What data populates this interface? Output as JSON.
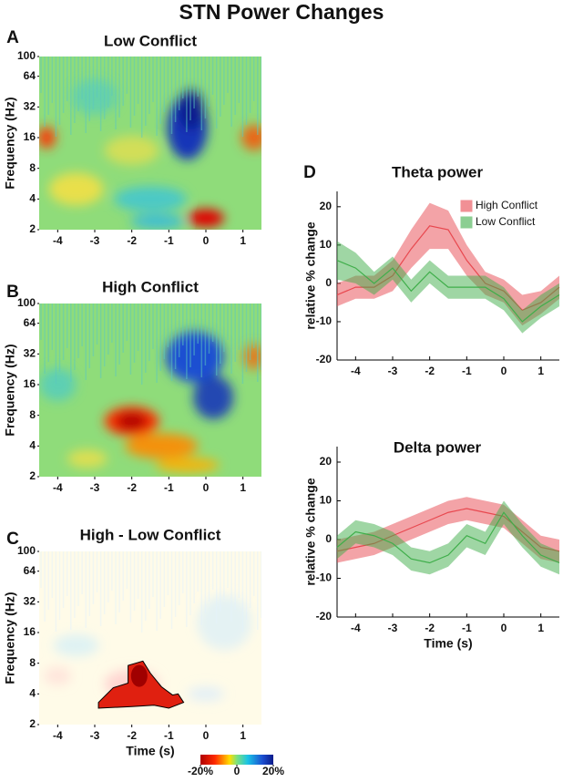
{
  "title": "STN Power Changes",
  "chart_data": [
    {
      "type": "heatmap",
      "panel_label": "A",
      "title": "Low Conflict",
      "ylabel": "Frequency (Hz)",
      "xlim": [
        -4.5,
        1.5
      ],
      "xticks": [
        -4,
        -3,
        -2,
        -1,
        0,
        1
      ],
      "ylim": [
        2,
        100
      ],
      "yticks": [
        2,
        4,
        8,
        16,
        32,
        64,
        100
      ],
      "log_y": true
    },
    {
      "type": "heatmap",
      "panel_label": "B",
      "title": "High Conflict",
      "ylabel": "Frequency (Hz)",
      "xlim": [
        -4.5,
        1.5
      ],
      "xticks": [
        -4,
        -3,
        -2,
        -1,
        0,
        1
      ],
      "ylim": [
        2,
        100
      ],
      "yticks": [
        2,
        4,
        8,
        16,
        32,
        64,
        100
      ],
      "log_y": true
    },
    {
      "type": "heatmap",
      "panel_label": "C",
      "title": "High - Low Conflict",
      "ylabel": "Frequency (Hz)",
      "xlabel": "Time (s)",
      "xlim": [
        -4.5,
        1.5
      ],
      "xticks": [
        -4,
        -3,
        -2,
        -1,
        0,
        1
      ],
      "ylim": [
        2,
        100
      ],
      "yticks": [
        2,
        4,
        8,
        16,
        32,
        64,
        100
      ],
      "log_y": true,
      "clim": [
        -20,
        20
      ],
      "cticks": [
        {
          "value": -20,
          "label": "-20%"
        },
        0,
        {
          "value": 20,
          "label": "20%"
        }
      ]
    },
    {
      "type": "line",
      "panel_label": "D",
      "title": "Theta power",
      "ylabel": "relative % change",
      "x": [
        -4.5,
        -4,
        -3.5,
        -3,
        -2.5,
        -2,
        -1.5,
        -1,
        -0.5,
        0,
        0.5,
        1,
        1.5
      ],
      "series": [
        {
          "name": "High Conflict",
          "color": "#e8484f",
          "values": [
            -3,
            -1,
            -1,
            2,
            9,
            15,
            14,
            6,
            0,
            -2,
            -7,
            -5,
            -1
          ],
          "errors": [
            3,
            3,
            3,
            4,
            5,
            6,
            5,
            4,
            3,
            3,
            4,
            3,
            3
          ]
        },
        {
          "name": "Low Conflict",
          "color": "#3fae4a",
          "values": [
            6,
            4,
            0,
            4,
            -2,
            3,
            -1,
            -1,
            -1,
            -4,
            -10,
            -6,
            -3
          ],
          "errors": [
            5,
            4,
            3,
            3,
            3,
            3,
            3,
            3,
            3,
            3,
            3,
            3,
            3
          ]
        }
      ],
      "xlim": [
        -4.5,
        1.5
      ],
      "xticks": [
        -4,
        -3,
        -2,
        -1,
        0,
        1
      ],
      "ylim": [
        -20,
        24
      ],
      "yticks": [
        -20,
        -10,
        0,
        10,
        20
      ],
      "legend": "upper right"
    },
    {
      "type": "line",
      "title": "Delta power",
      "ylabel": "relative % change",
      "xlabel": "Time (s)",
      "x": [
        -4.5,
        -4,
        -3.5,
        -3,
        -2.5,
        -2,
        -1.5,
        -1,
        -0.5,
        0,
        0.5,
        1,
        1.5
      ],
      "series": [
        {
          "color": "#e8484f",
          "values": [
            -3,
            -2,
            -1,
            1,
            3,
            5,
            7,
            8,
            7,
            6,
            2,
            -2,
            -3
          ],
          "errors": [
            3,
            3,
            3,
            3,
            3,
            3,
            3,
            3,
            3,
            3,
            3,
            3,
            3
          ]
        },
        {
          "color": "#3fae4a",
          "values": [
            -2,
            2,
            1,
            -1,
            -5,
            -6,
            -4,
            1,
            -1,
            7,
            1,
            -4,
            -6
          ],
          "errors": [
            3,
            3,
            3,
            3,
            3,
            3,
            3,
            3,
            3,
            3,
            3,
            3,
            3
          ]
        }
      ],
      "xlim": [
        -4.5,
        1.5
      ],
      "xticks": [
        -4,
        -3,
        -2,
        -1,
        0,
        1
      ],
      "ylim": [
        -20,
        24
      ],
      "yticks": [
        -20,
        -10,
        0,
        10,
        20
      ]
    }
  ]
}
